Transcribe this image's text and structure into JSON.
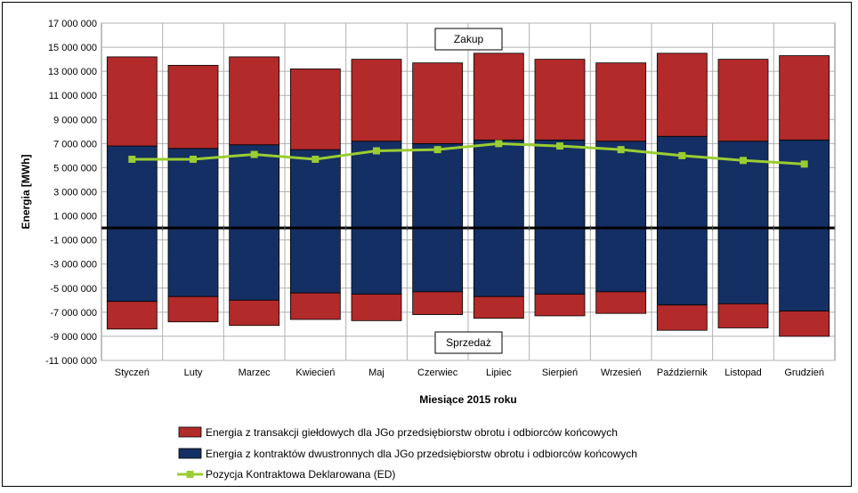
{
  "chart_data": {
    "type": "bar",
    "stacked": true,
    "xlabel": "Miesiące 2015  roku",
    "ylabel": "Energia  [MWh]",
    "ylim": [
      -11000000,
      17000000
    ],
    "yticks": [
      17000000,
      15000000,
      13000000,
      11000000,
      9000000,
      7000000,
      5000000,
      3000000,
      1000000,
      -1000000,
      -3000000,
      -5000000,
      -7000000,
      -9000000,
      -11000000
    ],
    "ytick_labels": [
      "17 000 000",
      "15 000 000",
      "13 000 000",
      "11 000 000",
      "9 000 000",
      "7 000 000",
      "5 000 000",
      "3 000 000",
      "1 000 000",
      "-1 000 000",
      "-3 000 000",
      "-5 000 000",
      "-7 000 000",
      "-9 000 000",
      "-11 000 000"
    ],
    "categories": [
      "Styczeń",
      "Luty",
      "Marzec",
      "Kwiecień",
      "Maj",
      "Czerwiec",
      "Lipiec",
      "Sierpień",
      "Wrzesień",
      "Październik",
      "Listopad",
      "Grudzień"
    ],
    "grid": true,
    "legend_position": "bottom",
    "annotations": {
      "top": "Zakup",
      "bottom": "Sprzedaż"
    },
    "series": [
      {
        "name": "Energia z transakcji giełdowych dla JGo przedsiębiorstw obrotu i odbiorców końcowych",
        "color": "#b22a2a",
        "purchase": [
          7400000,
          6900000,
          7300000,
          6700000,
          6800000,
          6700000,
          7200000,
          6700000,
          6500000,
          6900000,
          6800000,
          7000000
        ],
        "sale": [
          -2300000,
          -2100000,
          -2100000,
          -2200000,
          -2200000,
          -1900000,
          -1800000,
          -1800000,
          -1800000,
          -2100000,
          -2000000,
          -2100000
        ]
      },
      {
        "name": "Energia z kontraktów dwustronnych dla JGo przedsiębiorstw obrotu i odbiorców końcowych",
        "color": "#142f63",
        "purchase": [
          6800000,
          6600000,
          6900000,
          6500000,
          7200000,
          7000000,
          7300000,
          7300000,
          7200000,
          7600000,
          7200000,
          7300000
        ],
        "sale": [
          -6100000,
          -5700000,
          -6000000,
          -5400000,
          -5500000,
          -5300000,
          -5700000,
          -5500000,
          -5300000,
          -6400000,
          -6300000,
          -6900000
        ]
      },
      {
        "name": "Pozycja Kontraktowa Deklarowana (ED)",
        "type": "line",
        "color": "#9acd32",
        "values": [
          5700000,
          5700000,
          6100000,
          5700000,
          6400000,
          6500000,
          7000000,
          6800000,
          6500000,
          6000000,
          5600000,
          5300000
        ]
      }
    ]
  }
}
